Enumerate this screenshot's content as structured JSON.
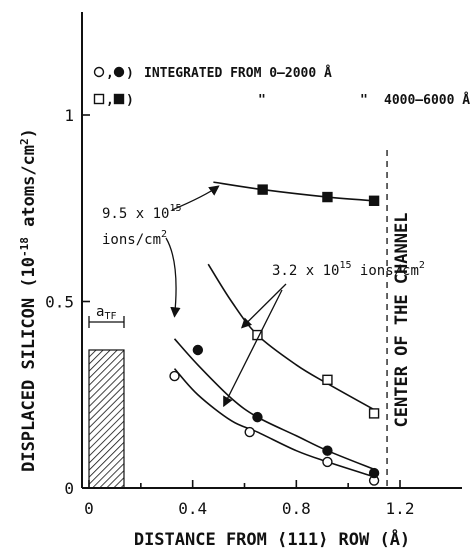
{
  "chart_data": {
    "type": "scatter",
    "xlabel": "DISTANCE FROM ⟨111⟩ ROW (Å)",
    "ylabel_main": "DISPLACED SILICON",
    "ylabel_units": "(10",
    "ylabel_exp": "-18",
    "ylabel_units_rest": " atoms/cm",
    "ylabel_units_sq": "2",
    "ylabel_close": ")",
    "xlim": [
      -0.05,
      1.3
    ],
    "ylim": [
      0,
      1.3
    ],
    "x_ticks": [
      0,
      0.4,
      0.8,
      1.2
    ],
    "x_tick_labels": [
      "0",
      "0.4",
      "0.8",
      "1.2"
    ],
    "y_ticks": [
      0,
      0.5,
      1
    ],
    "y_tick_labels": [
      "0",
      "0.5",
      "1"
    ],
    "legend": {
      "line1_markers": "○,●)",
      "line1_text": "INTEGRATED  FROM  0–2000 Å",
      "line2_markers": "□,■)",
      "line2_ditto1": "\"",
      "line2_ditto2": "\"",
      "line2_text": "4000–6000 Å"
    },
    "annotations": {
      "high_dose": "9.5 x 10",
      "high_dose_exp": "15",
      "high_dose_unit": "ions/cm",
      "high_dose_unit_sq": "2",
      "low_dose": "3.2 x 10",
      "low_dose_exp": "15",
      "low_dose_unit": "ions/cm",
      "low_dose_unit_sq": "2",
      "channel_center": "CENTER  OF  THE  CHANNEL",
      "a_tf": "a",
      "a_tf_sub": "TF"
    },
    "channel_center_x": 1.15,
    "a_tf_value": 0.135,
    "a_tf_bar_height": 0.37,
    "series": [
      {
        "marker": "open-circle",
        "x": [
          0.33,
          0.62,
          0.92,
          1.1
        ],
        "y": [
          0.3,
          0.15,
          0.07,
          0.02
        ]
      },
      {
        "marker": "filled-circle",
        "x": [
          0.42,
          0.65,
          0.92,
          1.1
        ],
        "y": [
          0.37,
          0.19,
          0.1,
          0.04
        ]
      },
      {
        "marker": "open-square",
        "x": [
          0.65,
          0.92,
          1.1
        ],
        "y": [
          0.41,
          0.29,
          0.2
        ]
      },
      {
        "marker": "filled-square",
        "x": [
          0.67,
          0.92,
          1.1
        ],
        "y": [
          0.8,
          0.78,
          0.77
        ]
      }
    ],
    "curves": [
      {
        "name": "fit-open-circle",
        "x": [
          0.33,
          0.42,
          0.55,
          0.65,
          0.8,
          0.92,
          1.1
        ],
        "y": [
          0.32,
          0.25,
          0.18,
          0.15,
          0.1,
          0.07,
          0.03
        ]
      },
      {
        "name": "fit-filled-circle",
        "x": [
          0.33,
          0.42,
          0.55,
          0.65,
          0.8,
          0.92,
          1.1
        ],
        "y": [
          0.4,
          0.33,
          0.24,
          0.19,
          0.14,
          0.1,
          0.05
        ]
      },
      {
        "name": "fit-open-square",
        "x": [
          0.46,
          0.55,
          0.65,
          0.8,
          0.92,
          1.1
        ],
        "y": [
          0.6,
          0.5,
          0.41,
          0.33,
          0.28,
          0.21
        ]
      },
      {
        "name": "fit-filled-square",
        "x": [
          0.48,
          0.67,
          0.92,
          1.1
        ],
        "y": [
          0.82,
          0.8,
          0.78,
          0.77
        ]
      }
    ]
  }
}
